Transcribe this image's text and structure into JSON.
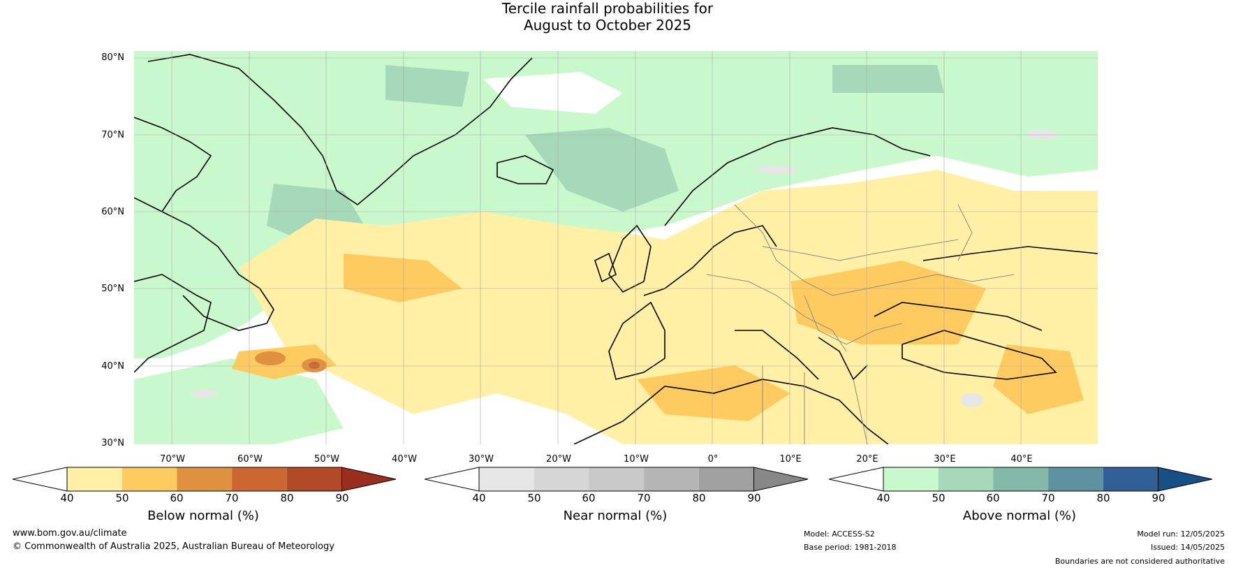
{
  "title": {
    "line1": "Tercile rainfall probabilities for",
    "line2": "August to October 2025"
  },
  "map": {
    "lat_labels": [
      "80°N",
      "70°N",
      "60°N",
      "50°N",
      "40°N",
      "30°N"
    ],
    "lon_labels": [
      "70°W",
      "60°W",
      "50°W",
      "40°W",
      "30°W",
      "20°W",
      "10°W",
      "0°",
      "10°E",
      "20°E",
      "30°E",
      "40°E"
    ]
  },
  "colorbars": [
    {
      "label": "Below normal (%)",
      "ticks": [
        "40",
        "50",
        "60",
        "70",
        "80",
        "90"
      ],
      "colors": [
        "#fff0a6",
        "#ffcb61",
        "#e09140",
        "#cc6632",
        "#b24a28",
        "#9a2e1e"
      ]
    },
    {
      "label": "Near normal (%)",
      "ticks": [
        "40",
        "50",
        "60",
        "70",
        "80",
        "90"
      ],
      "colors": [
        "#e6e6e6",
        "#d6d6d6",
        "#c8c8c8",
        "#b5b5b5",
        "#a0a0a0",
        "#888888"
      ]
    },
    {
      "label": "Above normal (%)",
      "ticks": [
        "40",
        "50",
        "60",
        "70",
        "80",
        "90"
      ],
      "colors": [
        "#c9f8cc",
        "#a6d9b9",
        "#83b8ab",
        "#5f92a0",
        "#326096",
        "#174f86"
      ]
    }
  ],
  "footer": {
    "website": "www.bom.gov.au/climate",
    "copyright": "© Commonwealth of Australia 2025, Australian Bureau of Meteorology",
    "model": "Model: ACCESS-S2",
    "base_period": "Base period: 1981-2018",
    "model_run": "Model run: 12/05/2025",
    "issued": "Issued: 14/05/2025",
    "disclaimer": "Boundaries are not considered authoritative"
  }
}
